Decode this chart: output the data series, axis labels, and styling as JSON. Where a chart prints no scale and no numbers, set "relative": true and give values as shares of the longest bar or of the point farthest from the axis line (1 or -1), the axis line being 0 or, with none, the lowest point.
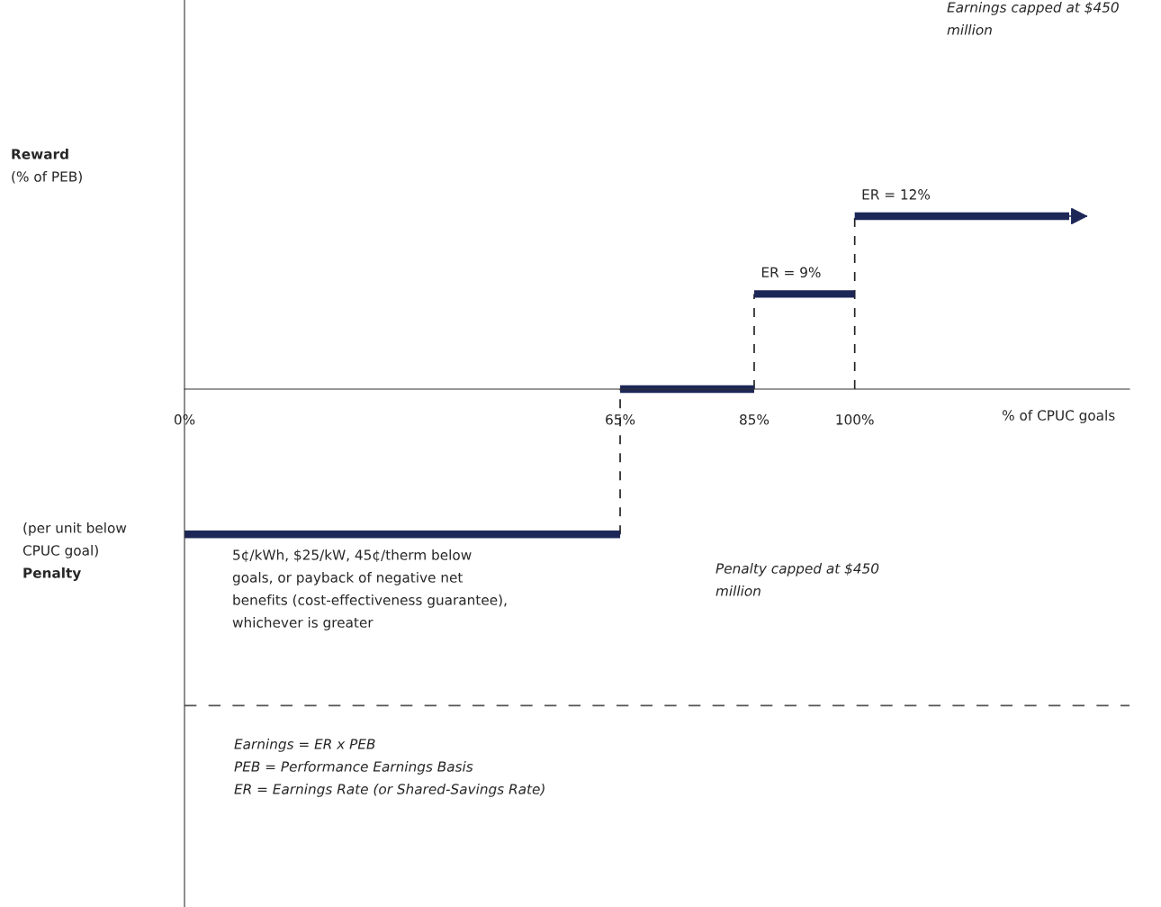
{
  "chart_data": {
    "type": "step",
    "relative": true,
    "tick_labels": "x",
    "grid": false,
    "series": [
      {
        "color": "#1c2757",
        "line_style": "solid",
        "x": [
          0,
          65,
          85,
          100,
          132
        ],
        "values": [
          -0.84,
          0,
          0.55,
          1,
          1
        ]
      },
      {
        "type": "line",
        "color": "#222222",
        "line_style": "dashed",
        "x": [
          65,
          65,
          null,
          85,
          85,
          null,
          100,
          100
        ],
        "values": [
          -0.84,
          0,
          null,
          0,
          0.55,
          null,
          0,
          1
        ]
      }
    ],
    "xlim": [
      0,
      141
    ],
    "xticks": [
      {
        "value": 0,
        "label": "0%"
      },
      {
        "value": 65,
        "label": "65%"
      },
      {
        "value": 85,
        "label": "85%"
      },
      {
        "value": 100,
        "label": "100%"
      }
    ],
    "xlabel": "% of CPUC goals",
    "ref_lines": [
      {
        "axis": "y",
        "value": -1.83,
        "label": null,
        "line_style": "dashed",
        "color": "#555555"
      }
    ],
    "annotations": [
      "Earnings capped at $450\nmillion",
      {
        "text": "ER = 9%",
        "x": 85,
        "y": 0.55
      },
      {
        "text": "ER = 12%",
        "x": 100,
        "y": 1
      },
      "(per unit below\nCPUC goal)\nPenalty",
      "5¢/kWh, $25/kW, 45¢/therm below\ngoals, or payback of negative net\nbenefits (cost-effectiveness guarantee),\nwhichever is greater",
      "Penalty capped at $450\nmillion",
      "Earnings = ER x PEB\nPEB = Performance Earnings Basis\nER = Earnings Rate (or Shared-Savings Rate)",
      "Reward\n(% of PEB)"
    ]
  }
}
